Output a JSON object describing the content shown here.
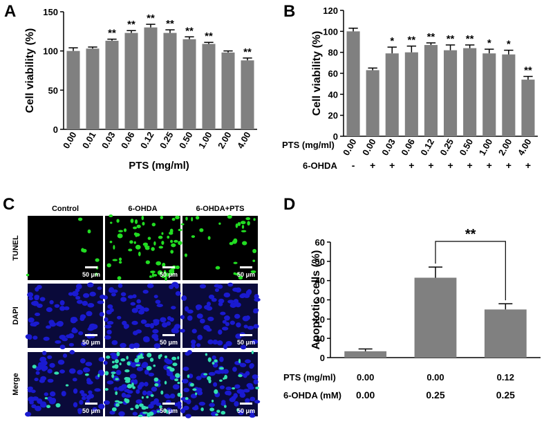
{
  "chart_data": [
    {
      "type": "bar",
      "panel": "A",
      "y_label": "Cell viability (%)",
      "x_label": "PTS (mg/ml)",
      "rotate_labels": true,
      "color": "#808080",
      "categories": [
        "0.00",
        "0.01",
        "0.03",
        "0.06",
        "0.12",
        "0.25",
        "0.50",
        "1.00",
        "2.00",
        "4.00"
      ],
      "values": [
        100,
        103,
        113,
        123,
        130,
        123,
        115,
        109,
        98,
        88
      ],
      "errors": [
        4,
        2,
        2,
        3,
        4,
        4,
        3,
        2,
        2,
        3
      ],
      "significance": [
        null,
        null,
        "**",
        "**",
        "**",
        "**",
        "**",
        "**",
        null,
        "**"
      ],
      "ylim": [
        0,
        150
      ],
      "yticks": [
        0,
        50,
        100,
        150
      ]
    },
    {
      "type": "bar",
      "panel": "B",
      "y_label": "Cell viability (%)",
      "x_label": "PTS (mg/ml)",
      "rotate_labels": true,
      "color": "#808080",
      "categories": [
        "0.00",
        "0.00",
        "0.03",
        "0.06",
        "0.12",
        "0.25",
        "0.50",
        "1.00",
        "2.00",
        "4.00"
      ],
      "second_row": {
        "label": "6-OHDA",
        "values": [
          "-",
          "+",
          "+",
          "+",
          "+",
          "+",
          "+",
          "+",
          "+",
          "+"
        ]
      },
      "values": [
        100,
        63,
        79,
        80,
        87,
        82,
        84,
        79,
        78,
        54
      ],
      "errors": [
        3,
        2,
        6,
        6,
        2,
        5,
        3,
        4,
        4,
        3
      ],
      "significance": [
        null,
        null,
        "*",
        "**",
        "**",
        "**",
        "**",
        "*",
        "*",
        "**"
      ],
      "ylim": [
        0,
        120
      ],
      "yticks": [
        0,
        20,
        40,
        60,
        80,
        100,
        120
      ]
    },
    {
      "type": "bar",
      "panel": "D",
      "y_label": "Apoptotic cells (%)",
      "x_label": "PTS (mg/ml)",
      "rotate_labels": false,
      "color": "#808080",
      "categories": [
        "0.00",
        "0.00",
        "0.12"
      ],
      "second_row": {
        "label": "6-OHDA (mM)",
        "values": [
          "0.00",
          "0.25",
          "0.25"
        ]
      },
      "values": [
        3.3,
        41.5,
        25
      ],
      "errors": [
        1.2,
        5.5,
        3
      ],
      "bracket": {
        "from": 1,
        "to": 2,
        "label": "**"
      },
      "ylim": [
        0,
        60
      ],
      "yticks": [
        0,
        10,
        20,
        30,
        40,
        50,
        60
      ]
    }
  ],
  "image_panel": {
    "panel": "C",
    "columns": [
      "Control",
      "6-OHDA",
      "6-OHDA+PTS"
    ],
    "rows": [
      "TUNEL",
      "DAPI",
      "Merge"
    ],
    "scale_bar": "50 μm"
  }
}
